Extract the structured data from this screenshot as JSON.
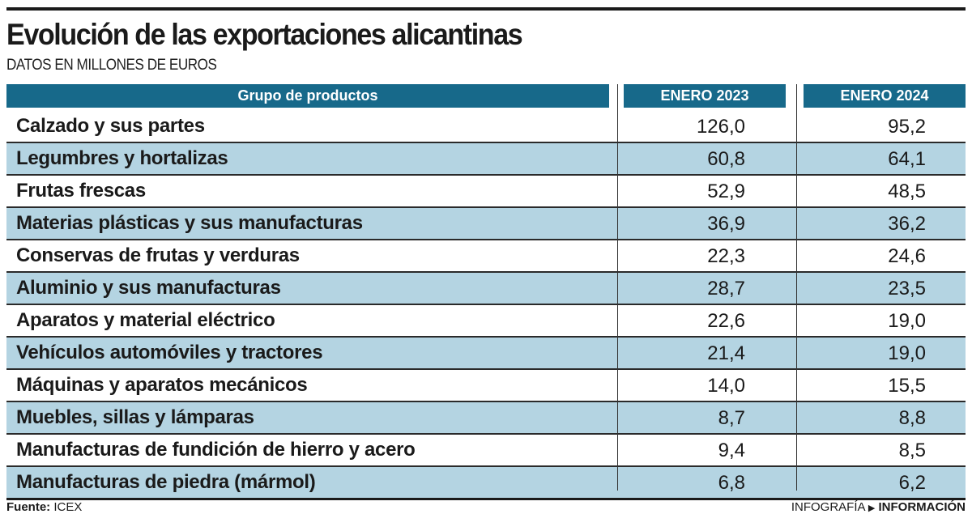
{
  "title": "Evolución de las exportaciones alicantinas",
  "subtitle": "DATOS EN MILLONES DE EUROS",
  "chart_data": {
    "type": "table",
    "columns": [
      "Grupo de productos",
      "ENERO 2023",
      "ENERO 2024"
    ],
    "rows": [
      {
        "label": "Calzado y sus partes",
        "v2023": "126,0",
        "v2024": "95,2"
      },
      {
        "label": "Legumbres y hortalizas",
        "v2023": "60,8",
        "v2024": "64,1"
      },
      {
        "label": "Frutas frescas",
        "v2023": "52,9",
        "v2024": "48,5"
      },
      {
        "label": "Materias plásticas y sus manufacturas",
        "v2023": "36,9",
        "v2024": "36,2"
      },
      {
        "label": "Conservas de frutas y verduras",
        "v2023": "22,3",
        "v2024": "24,6"
      },
      {
        "label": "Aluminio y sus manufacturas",
        "v2023": "28,7",
        "v2024": "23,5"
      },
      {
        "label": "Aparatos y material eléctrico",
        "v2023": "22,6",
        "v2024": "19,0"
      },
      {
        "label": "Vehículos automóviles y tractores",
        "v2023": "21,4",
        "v2024": "19,0"
      },
      {
        "label": "Máquinas y aparatos mecánicos",
        "v2023": "14,0",
        "v2024": "15,5"
      },
      {
        "label": "Muebles, sillas y lámparas",
        "v2023": "8,7",
        "v2024": "8,8"
      },
      {
        "label": "Manufacturas de fundición de hierro y acero",
        "v2023": "9,4",
        "v2024": "8,5"
      },
      {
        "label": "Manufacturas de piedra (mármol)",
        "v2023": "6,8",
        "v2024": "6,2"
      }
    ],
    "header_color": "#17698a",
    "alt_row_color": "#b4d4e2"
  },
  "footer": {
    "source_label": "Fuente:",
    "source": "ICEX",
    "credit_prefix": "INFOGRAFÍA",
    "credit_icon": "triangle-right-icon",
    "credit_brand": "INFORMACIÓN"
  }
}
